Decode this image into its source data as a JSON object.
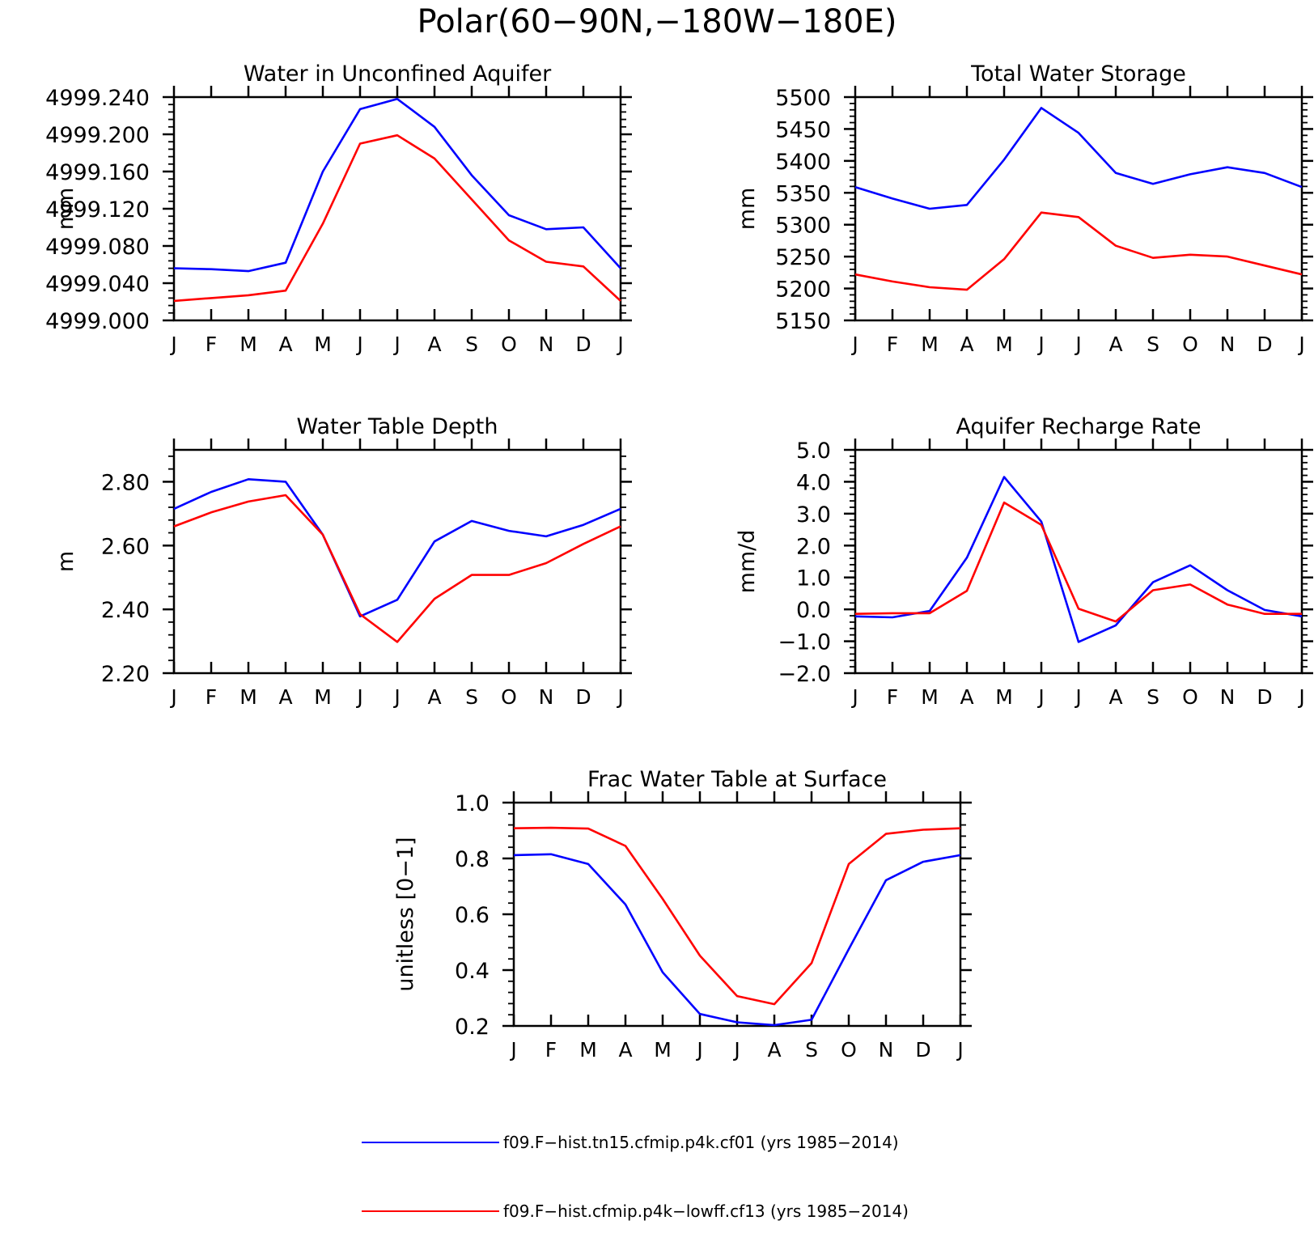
{
  "figure": {
    "title": "Polar(60−90N,−180W−180E)"
  },
  "colors": {
    "series1": "#0000ff",
    "series2": "#ff0000",
    "axis": "#000000"
  },
  "chart_data": [
    {
      "type": "line",
      "title": "Water in Unconfined Aquifer",
      "ylabel": "mm",
      "xlabel": "",
      "x": [
        "J",
        "F",
        "M",
        "A",
        "M",
        "J",
        "J",
        "A",
        "S",
        "O",
        "N",
        "D",
        "J"
      ],
      "ylim": [
        4999.0,
        4999.24
      ],
      "yticks": [
        "4999.000",
        "4999.040",
        "4999.080",
        "4999.120",
        "4999.160",
        "4999.200",
        "4999.240"
      ],
      "series": [
        {
          "name": "f09.F−hist.tn15.cfmip.p4k.cf01 (yrs 1985−2014)",
          "color": "#0000ff",
          "values": [
            4999.056,
            4999.055,
            4999.053,
            4999.062,
            4999.16,
            4999.227,
            4999.238,
            4999.208,
            4999.156,
            4999.113,
            4999.098,
            4999.1,
            4999.056
          ]
        },
        {
          "name": "f09.F−hist.cfmip.p4k−lowff.cf13 (yrs 1985−2014)",
          "color": "#ff0000",
          "values": [
            4999.021,
            4999.024,
            4999.027,
            4999.032,
            4999.104,
            4999.19,
            4999.199,
            4999.174,
            4999.13,
            4999.086,
            4999.063,
            4999.058,
            4999.021
          ]
        }
      ]
    },
    {
      "type": "line",
      "title": "Total Water Storage",
      "ylabel": "mm",
      "xlabel": "",
      "x": [
        "J",
        "F",
        "M",
        "A",
        "M",
        "J",
        "J",
        "A",
        "S",
        "O",
        "N",
        "D",
        "J"
      ],
      "ylim": [
        5150,
        5500
      ],
      "yticks": [
        "5150",
        "5200",
        "5250",
        "5300",
        "5350",
        "5400",
        "5450",
        "5500"
      ],
      "series": [
        {
          "name": "f09.F−hist.tn15.cfmip.p4k.cf01 (yrs 1985−2014)",
          "color": "#0000ff",
          "values": [
            5359,
            5341,
            5325,
            5331,
            5402,
            5483,
            5444,
            5381,
            5364,
            5379,
            5390,
            5381,
            5359
          ]
        },
        {
          "name": "f09.F−hist.cfmip.p4k−lowff.cf13 (yrs 1985−2014)",
          "color": "#ff0000",
          "values": [
            5222,
            5211,
            5202,
            5198,
            5246,
            5319,
            5312,
            5267,
            5248,
            5253,
            5250,
            5236,
            5222
          ]
        }
      ]
    },
    {
      "type": "line",
      "title": "Water Table Depth",
      "ylabel": "m",
      "xlabel": "",
      "x": [
        "J",
        "F",
        "M",
        "A",
        "M",
        "J",
        "J",
        "A",
        "S",
        "O",
        "N",
        "D",
        "J"
      ],
      "ylim": [
        2.2,
        2.9
      ],
      "yticks": [
        "2.20",
        "2.40",
        "2.60",
        "2.80"
      ],
      "series": [
        {
          "name": "f09.F−hist.tn15.cfmip.p4k.cf01 (yrs 1985−2014)",
          "color": "#0000ff",
          "values": [
            2.715,
            2.768,
            2.808,
            2.8,
            2.634,
            2.378,
            2.43,
            2.613,
            2.677,
            2.646,
            2.629,
            2.665,
            2.715
          ]
        },
        {
          "name": "f09.F−hist.cfmip.p4k−lowff.cf13 (yrs 1985−2014)",
          "color": "#ff0000",
          "values": [
            2.66,
            2.704,
            2.738,
            2.758,
            2.634,
            2.385,
            2.298,
            2.433,
            2.508,
            2.508,
            2.545,
            2.605,
            2.66
          ]
        }
      ]
    },
    {
      "type": "line",
      "title": "Aquifer Recharge Rate",
      "ylabel": "mm/d",
      "xlabel": "",
      "x": [
        "J",
        "F",
        "M",
        "A",
        "M",
        "J",
        "J",
        "A",
        "S",
        "O",
        "N",
        "D",
        "J"
      ],
      "ylim": [
        -2.0,
        5.0
      ],
      "yticks": [
        "−2.0",
        "−1.0",
        "0.0",
        "1.0",
        "2.0",
        "3.0",
        "4.0",
        "5.0"
      ],
      "series": [
        {
          "name": "f09.F−hist.tn15.cfmip.p4k.cf01 (yrs 1985−2014)",
          "color": "#0000ff",
          "values": [
            -0.22,
            -0.25,
            -0.05,
            1.62,
            4.15,
            2.75,
            -1.02,
            -0.5,
            0.85,
            1.38,
            0.6,
            -0.02,
            -0.22
          ]
        },
        {
          "name": "f09.F−hist.cfmip.p4k−lowff.cf13 (yrs 1985−2014)",
          "color": "#ff0000",
          "values": [
            -0.14,
            -0.12,
            -0.12,
            0.58,
            3.35,
            2.65,
            0.02,
            -0.38,
            0.6,
            0.78,
            0.15,
            -0.14,
            -0.14
          ]
        }
      ]
    },
    {
      "type": "line",
      "title": "Frac Water Table at Surface",
      "ylabel": "unitless [0−1]",
      "xlabel": "",
      "x": [
        "J",
        "F",
        "M",
        "A",
        "M",
        "J",
        "J",
        "A",
        "S",
        "O",
        "N",
        "D",
        "J"
      ],
      "ylim": [
        0.2,
        1.0
      ],
      "yticks": [
        "0.2",
        "0.4",
        "0.6",
        "0.8",
        "1.0"
      ],
      "series": [
        {
          "name": "f09.F−hist.tn15.cfmip.p4k.cf01 (yrs 1985−2014)",
          "color": "#0000ff",
          "values": [
            0.812,
            0.815,
            0.78,
            0.635,
            0.392,
            0.243,
            0.213,
            0.203,
            0.222,
            0.475,
            0.722,
            0.788,
            0.812
          ]
        },
        {
          "name": "f09.F−hist.cfmip.p4k−lowff.cf13 (yrs 1985−2014)",
          "color": "#ff0000",
          "values": [
            0.908,
            0.91,
            0.907,
            0.845,
            0.655,
            0.452,
            0.307,
            0.278,
            0.425,
            0.78,
            0.888,
            0.903,
            0.908
          ]
        }
      ]
    }
  ],
  "legend": {
    "entries": [
      {
        "label": "f09.F−hist.tn15.cfmip.p4k.cf01 (yrs 1985−2014)",
        "color": "#0000ff"
      },
      {
        "label": "f09.F−hist.cfmip.p4k−lowff.cf13 (yrs 1985−2014)",
        "color": "#ff0000"
      }
    ]
  }
}
